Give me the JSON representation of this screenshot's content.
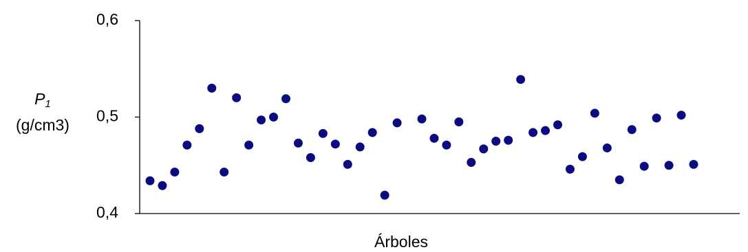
{
  "chart_data": {
    "type": "scatter",
    "ylabel": {
      "symbol": "P",
      "subscript": "1",
      "unit": "(g/cm3)"
    },
    "xlabel": "Árboles",
    "color": "#0b0b80",
    "categories": [
      null,
      null,
      null,
      null,
      null,
      null,
      null,
      null,
      null,
      null,
      null,
      null,
      null,
      null,
      null,
      null,
      null,
      null,
      null,
      null,
      null,
      null,
      null,
      null,
      null,
      null,
      null,
      null,
      null,
      null,
      null,
      null,
      null,
      null,
      null,
      null,
      null,
      null,
      null,
      null,
      null,
      null,
      null,
      null,
      null
    ],
    "values": [
      0.434,
      0.429,
      0.443,
      0.471,
      0.488,
      0.53,
      0.443,
      0.52,
      0.471,
      0.497,
      0.5,
      0.519,
      0.473,
      0.458,
      0.483,
      0.472,
      0.451,
      0.469,
      0.484,
      0.419,
      0.494,
      null,
      0.498,
      0.478,
      0.471,
      0.495,
      0.453,
      0.467,
      0.475,
      0.476,
      0.539,
      0.484,
      0.486,
      0.492,
      0.446,
      0.459,
      0.504,
      0.468,
      0.435,
      0.487,
      0.449,
      0.499,
      0.45,
      0.502,
      0.451
    ],
    "ylim": [
      0.4,
      0.6
    ],
    "yticks": [
      {
        "value": 0.4,
        "label": "0,4"
      },
      {
        "value": 0.5,
        "label": "0,5"
      },
      {
        "value": 0.6,
        "label": "0,6"
      }
    ]
  }
}
